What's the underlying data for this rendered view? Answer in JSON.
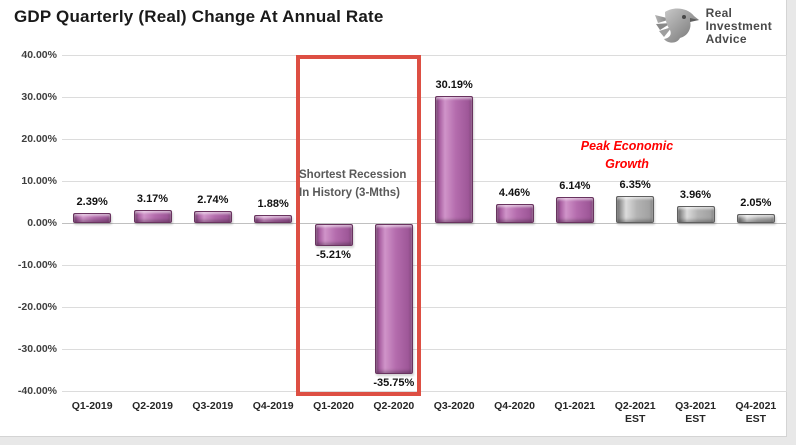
{
  "header": {
    "title": "GDP Quarterly (Real) Change At Annual Rate",
    "logo": {
      "icon": "eagle-icon",
      "line1": "Real",
      "line2": "Investment",
      "line3": "Advice"
    }
  },
  "chart_data": {
    "type": "bar",
    "title": "GDP Quarterly (Real) Change At Annual Rate",
    "categories": [
      "Q1-2019",
      "Q2-2019",
      "Q3-2019",
      "Q4-2019",
      "Q1-2020",
      "Q2-2020",
      "Q3-2020",
      "Q4-2020",
      "Q1-2021",
      "Q2-2021",
      "Q3-2021",
      "Q4-2021"
    ],
    "category_suffix": [
      "",
      "",
      "",
      "",
      "",
      "",
      "",
      "",
      "",
      "EST",
      "EST",
      "EST"
    ],
    "values": [
      2.39,
      3.17,
      2.74,
      1.88,
      -5.21,
      -35.75,
      30.19,
      4.46,
      6.14,
      6.35,
      3.96,
      2.05
    ],
    "value_labels": [
      "2.39%",
      "3.17%",
      "2.74%",
      "1.88%",
      "-5.21%",
      "-35.75%",
      "30.19%",
      "4.46%",
      "6.14%",
      "6.35%",
      "3.96%",
      "2.05%"
    ],
    "estimate_flags": [
      false,
      false,
      false,
      false,
      false,
      false,
      false,
      false,
      false,
      true,
      true,
      true
    ],
    "xlabel": "",
    "ylabel": "",
    "ylim": [
      -40,
      40
    ],
    "yticks": [
      "40.00%",
      "30.00%",
      "20.00%",
      "10.00%",
      "0.00%",
      "-10.00%",
      "-20.00%",
      "-30.00%",
      "-40.00%"
    ],
    "grid": true,
    "legend": "none",
    "bar_color_actual": "#AE68A8",
    "bar_color_estimate": "#ACACAC",
    "highlight_box": {
      "label": "recession-highlight",
      "categories": [
        "Q1-2020",
        "Q2-2020"
      ],
      "border_color": "#DD4F43"
    },
    "annotations": [
      {
        "id": "recession-note",
        "line1": "Shortest Recession",
        "line2": "In History (3-Mths)",
        "color": "#595959"
      },
      {
        "id": "peak-growth-note",
        "line1": "Peak Economic",
        "line2": "Growth",
        "color": "#FF0000"
      }
    ]
  }
}
